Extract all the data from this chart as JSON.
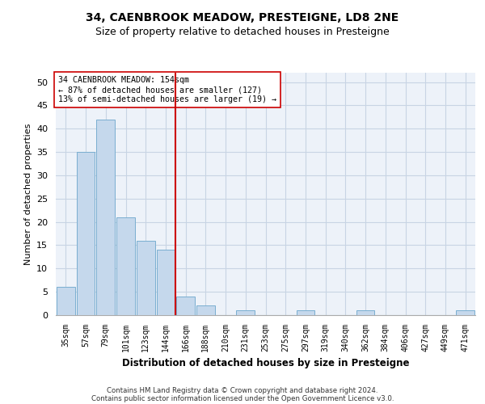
{
  "title1": "34, CAENBROOK MEADOW, PRESTEIGNE, LD8 2NE",
  "title2": "Size of property relative to detached houses in Presteigne",
  "xlabel": "Distribution of detached houses by size in Presteigne",
  "ylabel": "Number of detached properties",
  "categories": [
    "35sqm",
    "57sqm",
    "79sqm",
    "101sqm",
    "123sqm",
    "144sqm",
    "166sqm",
    "188sqm",
    "210sqm",
    "231sqm",
    "253sqm",
    "275sqm",
    "297sqm",
    "319sqm",
    "340sqm",
    "362sqm",
    "384sqm",
    "406sqm",
    "427sqm",
    "449sqm",
    "471sqm"
  ],
  "values": [
    6,
    35,
    42,
    21,
    16,
    14,
    4,
    2,
    0,
    1,
    0,
    0,
    1,
    0,
    0,
    1,
    0,
    0,
    0,
    0,
    1
  ],
  "bar_color": "#c5d8ec",
  "bar_edge_color": "#7aaed0",
  "vline_x": 5.5,
  "vline_color": "#cc0000",
  "annotation_text": "34 CAENBROOK MEADOW: 154sqm\n← 87% of detached houses are smaller (127)\n13% of semi-detached houses are larger (19) →",
  "annotation_box_color": "white",
  "annotation_box_edge": "#cc0000",
  "ylim": [
    0,
    52
  ],
  "yticks": [
    0,
    5,
    10,
    15,
    20,
    25,
    30,
    35,
    40,
    45,
    50
  ],
  "grid_color": "#c8d4e4",
  "footer1": "Contains HM Land Registry data © Crown copyright and database right 2024.",
  "footer2": "Contains public sector information licensed under the Open Government Licence v3.0.",
  "bg_color": "#edf2f9",
  "title1_fontsize": 10,
  "title2_fontsize": 9,
  "bar_width": 0.92
}
